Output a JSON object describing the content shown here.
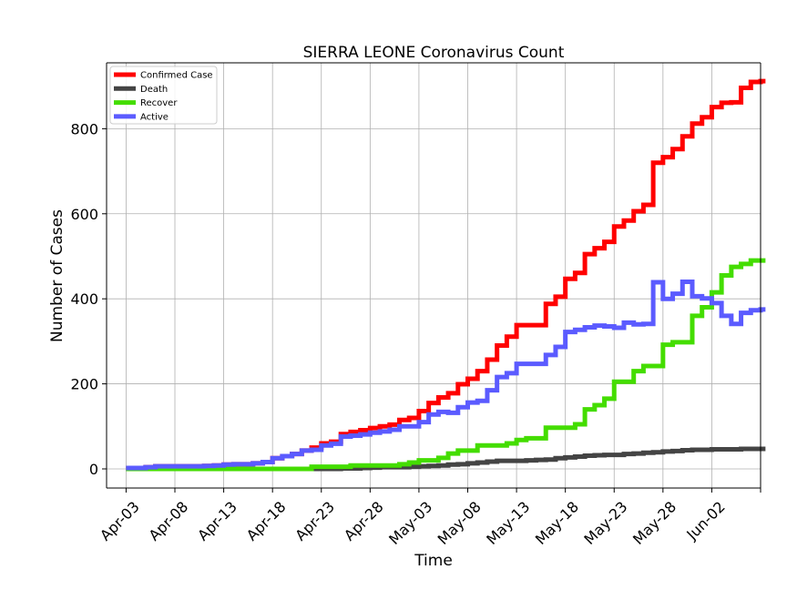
{
  "chart_data": {
    "type": "line",
    "title": "SIERRA LEONE Coronavirus Count",
    "xlabel": "Time",
    "ylabel": "Number of Cases",
    "x_start": "2020-04-03",
    "x_end": "2020-06-05",
    "xlim": [
      "2020-04-01",
      "2020-06-07"
    ],
    "ylim": [
      -45,
      955
    ],
    "x_ticks": [
      "Apr-03",
      "Apr-08",
      "Apr-13",
      "Apr-18",
      "Apr-23",
      "Apr-28",
      "May-03",
      "May-08",
      "May-13",
      "May-18",
      "May-23",
      "May-28",
      "Jun-02"
    ],
    "y_ticks": [
      0,
      200,
      400,
      600,
      800
    ],
    "grid": true,
    "legend_position": "top-left",
    "series": [
      {
        "name": "Confirmed Case",
        "color": "#ff0000",
        "values": [
          2,
          2,
          4,
          6,
          6,
          6,
          6,
          6,
          7,
          8,
          10,
          11,
          11,
          13,
          16,
          25,
          30,
          35,
          43,
          50,
          60,
          64,
          82,
          87,
          91,
          96,
          100,
          104,
          115,
          120,
          136,
          155,
          168,
          178,
          199,
          212,
          230,
          257,
          290,
          311,
          338,
          338,
          338,
          388,
          405,
          447,
          461,
          505,
          519,
          534,
          570,
          584,
          606,
          621,
          720,
          733,
          752,
          782,
          812,
          827,
          851,
          861,
          862,
          896,
          910,
          912
        ]
      },
      {
        "name": "Death",
        "color": "#444444",
        "values": [
          0,
          0,
          0,
          0,
          0,
          0,
          0,
          0,
          0,
          0,
          0,
          0,
          0,
          0,
          0,
          0,
          0,
          0,
          0,
          0,
          0,
          0,
          1,
          1,
          2,
          3,
          4,
          4,
          4,
          5,
          6,
          7,
          8,
          10,
          11,
          13,
          15,
          17,
          19,
          19,
          19,
          20,
          21,
          22,
          25,
          27,
          29,
          31,
          32,
          33,
          33,
          35,
          36,
          38,
          39,
          41,
          42,
          44,
          45,
          45,
          46,
          46,
          46,
          47,
          47,
          47
        ]
      },
      {
        "name": "Recover",
        "color": "#44dd00",
        "values": [
          0,
          0,
          0,
          0,
          0,
          0,
          0,
          0,
          0,
          0,
          0,
          0,
          0,
          0,
          0,
          0,
          0,
          0,
          0,
          5,
          5,
          5,
          5,
          8,
          8,
          8,
          8,
          8,
          11,
          15,
          20,
          20,
          26,
          36,
          43,
          43,
          55,
          55,
          55,
          60,
          68,
          72,
          72,
          97,
          97,
          97,
          105,
          140,
          150,
          165,
          205,
          205,
          230,
          242,
          242,
          292,
          298,
          298,
          360,
          380,
          415,
          455,
          475,
          482,
          490,
          490
        ]
      },
      {
        "name": "Active",
        "color": "#5b5bff",
        "values": [
          2,
          2,
          4,
          6,
          6,
          6,
          6,
          6,
          7,
          8,
          10,
          11,
          11,
          13,
          16,
          25,
          30,
          35,
          43,
          45,
          55,
          59,
          76,
          78,
          81,
          85,
          88,
          92,
          100,
          100,
          110,
          128,
          134,
          132,
          145,
          156,
          160,
          185,
          216,
          225,
          247,
          247,
          247,
          268,
          287,
          322,
          327,
          333,
          337,
          335,
          332,
          344,
          340,
          341,
          439,
          400,
          412,
          440,
          406,
          401,
          390,
          360,
          341,
          367,
          373,
          375
        ]
      }
    ]
  }
}
